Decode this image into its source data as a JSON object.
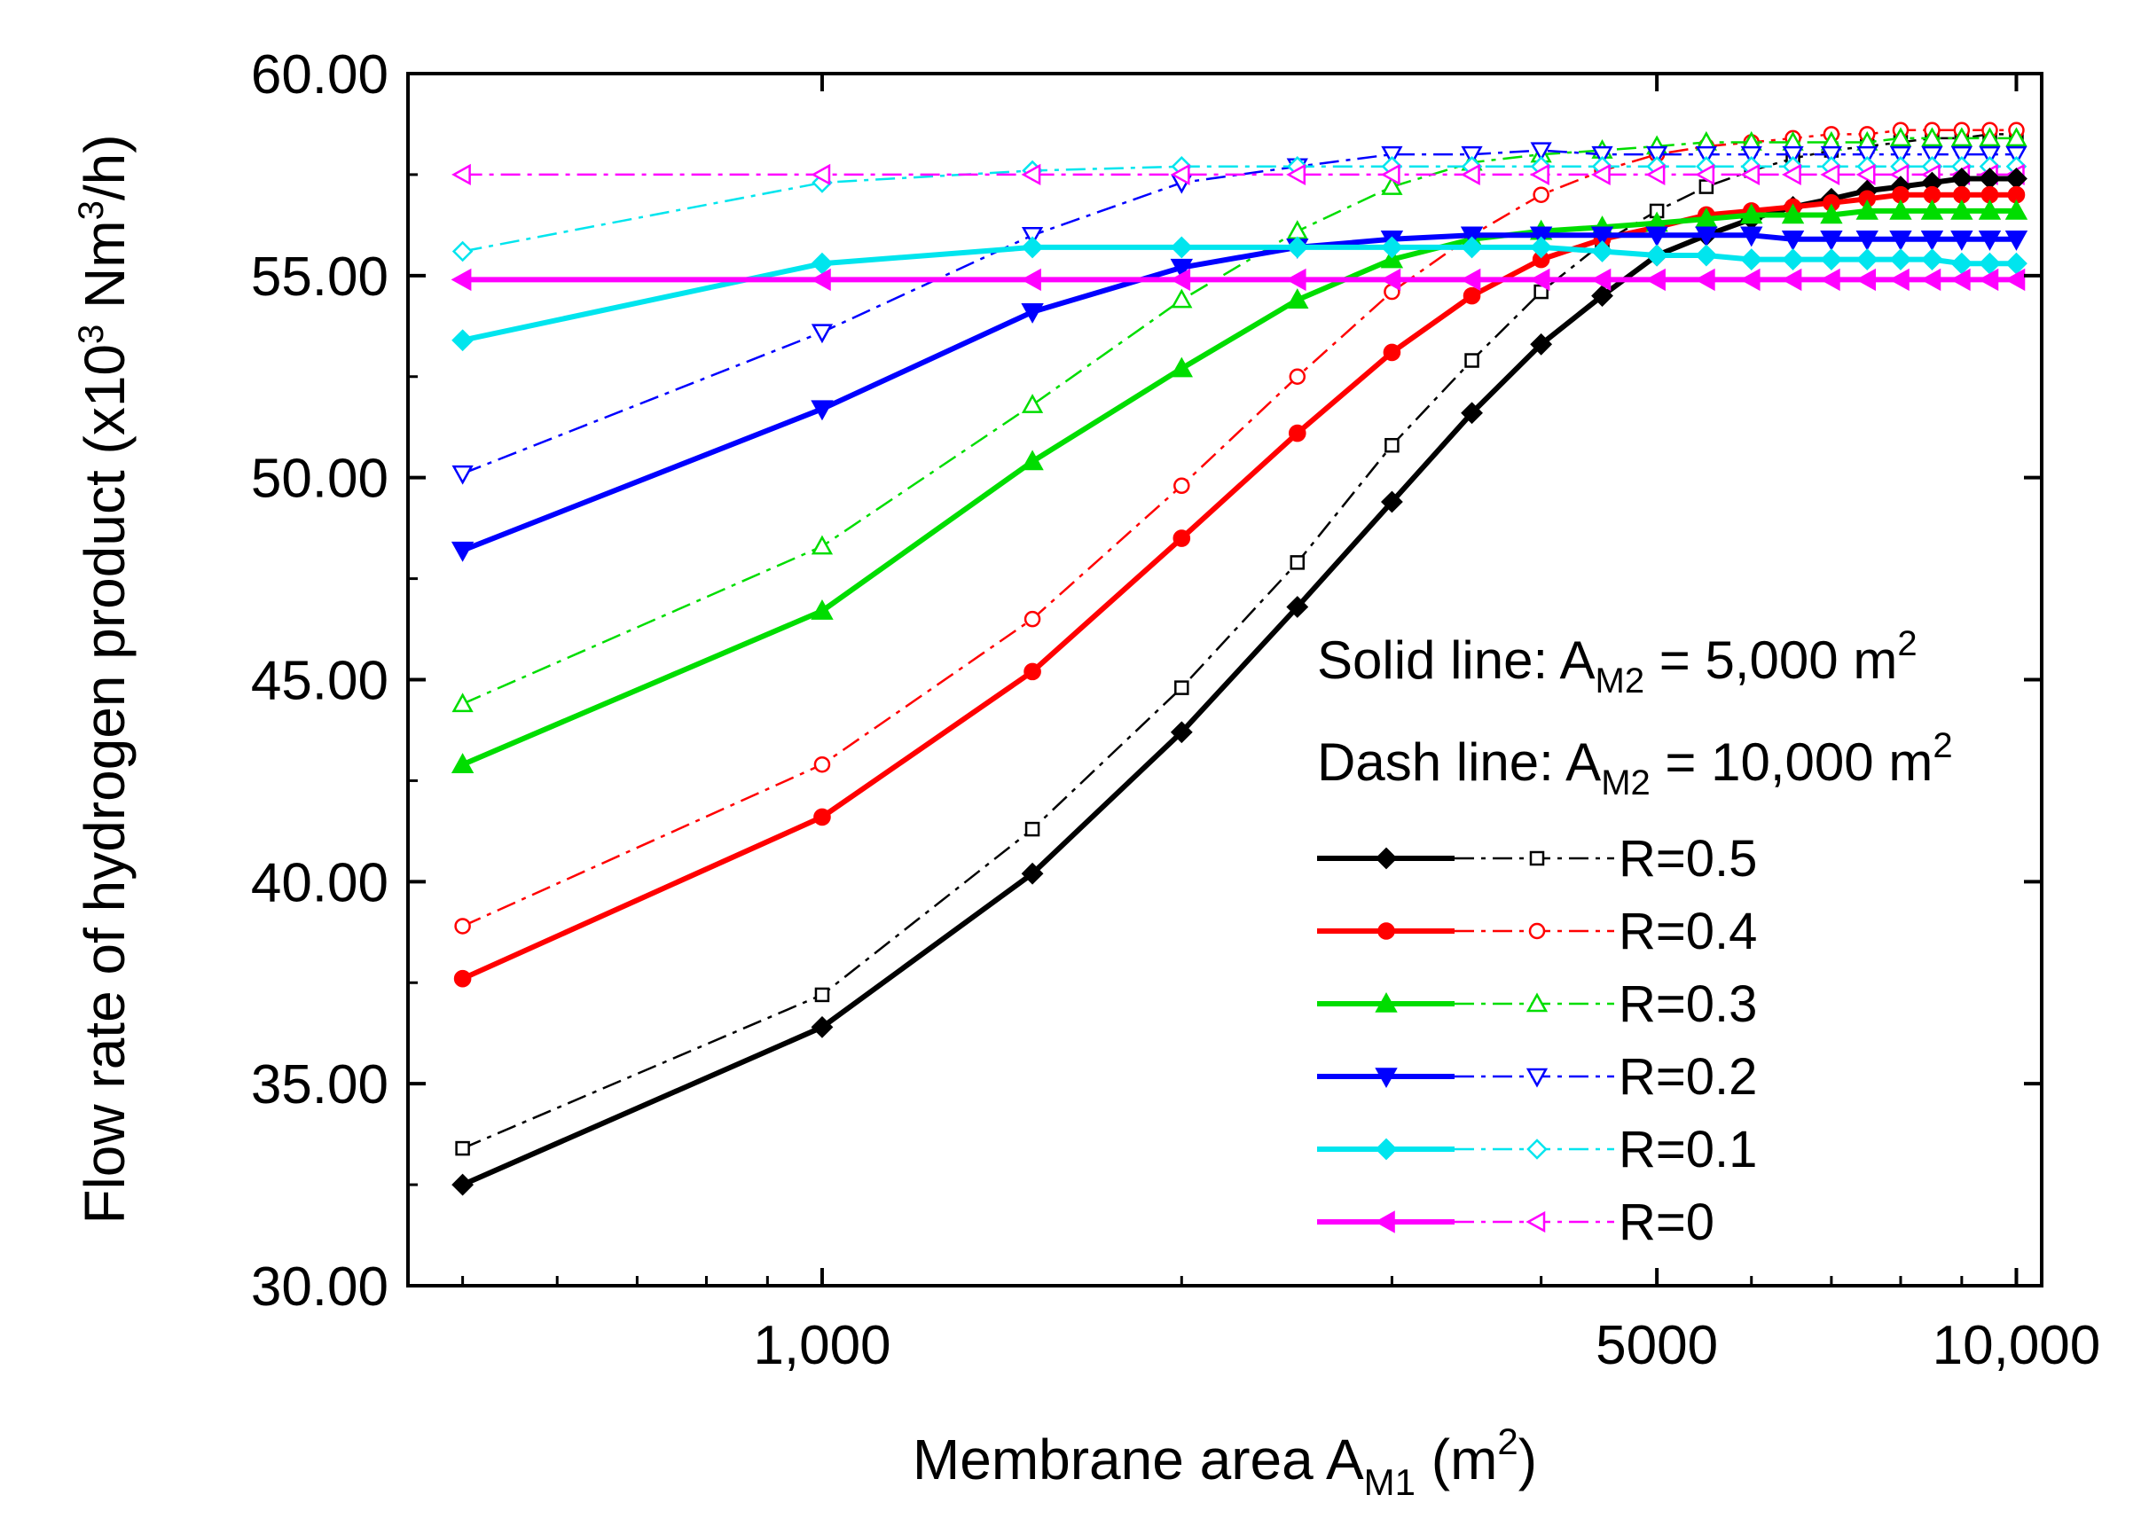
{
  "chart_data": {
    "type": "line",
    "x_scale": "log",
    "xlabel": "Membrane area A_M1 (m^2)",
    "xlabel_parts": {
      "main": "Membrane area A",
      "sub": "M1",
      "unit_open": " (m",
      "sup": "2",
      "unit_close": ")"
    },
    "ylabel": "Flow rate of hydrogen product (x10^3 Nm^3/h)",
    "ylabel_parts": {
      "main": "Flow rate of hydrogen product (x10",
      "sup1": "3",
      "mid": " Nm",
      "sup2": "3",
      "end": "/h)"
    },
    "xlim": [
      450,
      10500
    ],
    "ylim": [
      30,
      60
    ],
    "y_ticks": [
      30,
      35,
      40,
      45,
      50,
      55,
      60
    ],
    "y_tick_labels": [
      "30.00",
      "35.00",
      "40.00",
      "45.00",
      "50.00",
      "55.00",
      "60.00"
    ],
    "x_ticks": [
      1000,
      5000,
      10000
    ],
    "x_tick_labels": [
      "1,000",
      "5000",
      "10,000"
    ],
    "notes": [
      {
        "prefix": "Solid line: A",
        "sub": "M2",
        "value": " = 5,000 m",
        "sup": "2"
      },
      {
        "prefix": "Dash line: A",
        "sub": "M2",
        "value": " = 10,000 m",
        "sup": "2"
      }
    ],
    "x": [
      500,
      1000,
      1500,
      2000,
      2500,
      3000,
      3500,
      4000,
      4500,
      5000,
      5500,
      6000,
      6500,
      7000,
      7500,
      8000,
      8500,
      9000,
      9500,
      10000
    ],
    "series": [
      {
        "name": "R=0.5",
        "style": "solid",
        "color": "#000000",
        "marker": "diamond",
        "values": [
          32.5,
          36.4,
          40.2,
          43.7,
          46.8,
          49.4,
          51.6,
          53.3,
          54.5,
          55.5,
          56.0,
          56.4,
          56.7,
          56.9,
          57.1,
          57.2,
          57.3,
          57.4,
          57.4,
          57.4
        ]
      },
      {
        "name": "R=0.4",
        "style": "solid",
        "color": "#ff0000",
        "marker": "circle",
        "values": [
          37.6,
          41.6,
          45.2,
          48.5,
          51.1,
          53.1,
          54.5,
          55.4,
          55.9,
          56.2,
          56.5,
          56.6,
          56.7,
          56.8,
          56.9,
          57.0,
          57.0,
          57.0,
          57.0,
          57.0
        ]
      },
      {
        "name": "R=0.3",
        "style": "solid",
        "color": "#00dd00",
        "marker": "triangle-up",
        "values": [
          42.9,
          46.7,
          50.4,
          52.7,
          54.4,
          55.4,
          55.9,
          56.1,
          56.2,
          56.3,
          56.4,
          56.5,
          56.5,
          56.5,
          56.6,
          56.6,
          56.6,
          56.6,
          56.6,
          56.6
        ]
      },
      {
        "name": "R=0.2",
        "style": "solid",
        "color": "#0000ff",
        "marker": "triangle-down",
        "values": [
          48.2,
          51.7,
          54.1,
          55.2,
          55.7,
          55.9,
          56.0,
          56.0,
          56.0,
          56.0,
          56.0,
          56.0,
          55.9,
          55.9,
          55.9,
          55.9,
          55.9,
          55.9,
          55.9,
          55.9
        ]
      },
      {
        "name": "R=0.1",
        "style": "solid",
        "color": "#00e5ee",
        "marker": "diamond",
        "values": [
          53.4,
          55.3,
          55.7,
          55.7,
          55.7,
          55.7,
          55.7,
          55.7,
          55.6,
          55.5,
          55.5,
          55.4,
          55.4,
          55.4,
          55.4,
          55.4,
          55.4,
          55.3,
          55.3,
          55.3
        ]
      },
      {
        "name": "R=0",
        "style": "solid",
        "color": "#ff00ff",
        "marker": "triangle-left",
        "values": [
          54.9,
          54.9,
          54.9,
          54.9,
          54.9,
          54.9,
          54.9,
          54.9,
          54.9,
          54.9,
          54.9,
          54.9,
          54.9,
          54.9,
          54.9,
          54.9,
          54.9,
          54.9,
          54.9,
          54.9
        ]
      },
      {
        "name": "R=0.5 (A_M2 = 10,000)",
        "style": "dash",
        "color": "#000000",
        "marker": "square-open",
        "values": [
          33.4,
          37.2,
          41.3,
          44.8,
          47.9,
          50.8,
          52.9,
          54.6,
          55.8,
          56.6,
          57.2,
          57.6,
          57.9,
          58.1,
          58.2,
          58.3,
          58.4,
          58.4,
          58.5,
          58.5
        ]
      },
      {
        "name": "R=0.4 (A_M2 = 10,000)",
        "style": "dash",
        "color": "#ff0000",
        "marker": "circle-open",
        "values": [
          38.9,
          42.9,
          46.5,
          49.8,
          52.5,
          54.6,
          56.0,
          57.0,
          57.6,
          58.0,
          58.2,
          58.3,
          58.4,
          58.5,
          58.5,
          58.6,
          58.6,
          58.6,
          58.6,
          58.6
        ]
      },
      {
        "name": "R=0.3 (A_M2 = 10,000)",
        "style": "dash",
        "color": "#00dd00",
        "marker": "triangle-up-open",
        "values": [
          44.4,
          48.3,
          51.8,
          54.4,
          56.1,
          57.2,
          57.8,
          58.0,
          58.1,
          58.2,
          58.3,
          58.3,
          58.3,
          58.3,
          58.3,
          58.4,
          58.4,
          58.4,
          58.4,
          58.4
        ]
      },
      {
        "name": "R=0.2 (A_M2 = 10,000)",
        "style": "dash",
        "color": "#0000ff",
        "marker": "triangle-down-open",
        "values": [
          50.1,
          53.6,
          56.0,
          57.3,
          57.7,
          58.0,
          58.0,
          58.1,
          58.0,
          58.0,
          58.0,
          58.0,
          58.0,
          58.0,
          58.0,
          58.0,
          58.0,
          58.0,
          58.0,
          58.0
        ]
      },
      {
        "name": "R=0.1 (A_M2 = 10,000)",
        "style": "dash",
        "color": "#00e5ee",
        "marker": "diamond-open",
        "values": [
          55.6,
          57.3,
          57.6,
          57.7,
          57.7,
          57.7,
          57.7,
          57.7,
          57.7,
          57.7,
          57.7,
          57.7,
          57.7,
          57.7,
          57.7,
          57.7,
          57.7,
          57.7,
          57.7,
          57.7
        ]
      },
      {
        "name": "R=0 (A_M2 = 10,000)",
        "style": "dash",
        "color": "#ff00ff",
        "marker": "triangle-left-open",
        "values": [
          57.5,
          57.5,
          57.5,
          57.5,
          57.5,
          57.5,
          57.5,
          57.5,
          57.5,
          57.5,
          57.5,
          57.5,
          57.5,
          57.5,
          57.5,
          57.5,
          57.5,
          57.5,
          57.5,
          57.5
        ]
      }
    ],
    "legend": {
      "placement": "bottom-right",
      "entries": [
        {
          "label": "R=0.5",
          "color": "#000000",
          "solid_marker": "diamond",
          "dash_marker": "square-open"
        },
        {
          "label": "R=0.4",
          "color": "#ff0000",
          "solid_marker": "circle",
          "dash_marker": "circle-open"
        },
        {
          "label": "R=0.3",
          "color": "#00dd00",
          "solid_marker": "triangle-up",
          "dash_marker": "triangle-up-open"
        },
        {
          "label": "R=0.2",
          "color": "#0000ff",
          "solid_marker": "triangle-down",
          "dash_marker": "triangle-down-open"
        },
        {
          "label": "R=0.1",
          "color": "#00e5ee",
          "solid_marker": "diamond",
          "dash_marker": "diamond-open"
        },
        {
          "label": "R=0",
          "color": "#ff00ff",
          "solid_marker": "triangle-left",
          "dash_marker": "triangle-left-open"
        }
      ]
    }
  }
}
